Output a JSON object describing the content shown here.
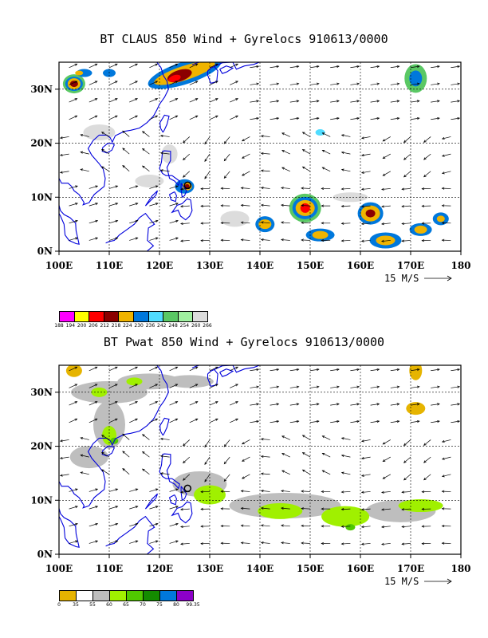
{
  "panels": [
    {
      "id": "claus",
      "title": "BT CLAUS 850 Wind + Gyrelocs 910613/0000",
      "x_labels": [
        "100E",
        "110E",
        "120E",
        "130E",
        "140E",
        "150E",
        "160E",
        "170E",
        "180"
      ],
      "y_labels": [
        "0N",
        "10N",
        "20N",
        "30N"
      ],
      "ref_vector_label": "15 M/S",
      "colorbar": {
        "labels": [
          "188",
          "194",
          "200",
          "206",
          "212",
          "218",
          "224",
          "230",
          "236",
          "242",
          "248",
          "254",
          "260",
          "266"
        ],
        "colors": [
          "#ff00ff",
          "#ffff00",
          "#ff0000",
          "#8b0000",
          "#f0b400",
          "#0078dc",
          "#50dcff",
          "#5ac864",
          "#a0f0a0",
          "#dcdcdc"
        ]
      },
      "cloud_colors": {
        "light": "#dcdcdc",
        "green": "#5ac864",
        "cyan": "#50dcff",
        "blue": "#0078dc",
        "orange": "#f0b400",
        "darkred": "#8b0000",
        "red": "#ff0000"
      }
    },
    {
      "id": "pwat",
      "title": "BT Pwat 850 Wind + Gyrelocs 910613/0000",
      "x_labels": [
        "100E",
        "110E",
        "120E",
        "130E",
        "140E",
        "150E",
        "160E",
        "170E",
        "180"
      ],
      "y_labels": [
        "0N",
        "10N",
        "20N",
        "30N"
      ],
      "ref_vector_label": "15 M/S",
      "colorbar": {
        "labels": [
          "0",
          "35",
          "55",
          "60",
          "65",
          "70",
          "75",
          "80",
          "99.35"
        ],
        "colors": [
          "#e6b400",
          "#ffffff",
          "#bebebe",
          "#a0f000",
          "#50c800",
          "#148c00",
          "#0078dc",
          "#8c00c8"
        ]
      },
      "field_colors": {
        "gray": "#bebebe",
        "lime": "#a0f000",
        "green": "#50c800",
        "gold": "#e6b400"
      }
    }
  ],
  "colors": {
    "coast": "#0000dc",
    "frame": "#000000",
    "grid": "#000000",
    "vector": "#000000"
  }
}
